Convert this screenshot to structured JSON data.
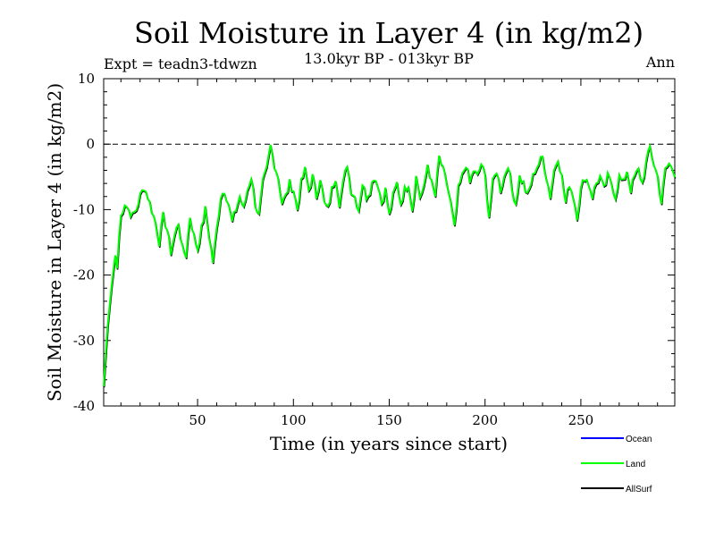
{
  "chart_data": {
    "type": "line",
    "title": "Soil Moisture in Layer 4 (in kg/m2)",
    "subtitle": "13.0kyr BP - 013kyr BP",
    "experiment_label": "Expt = teadn3-tdwzn",
    "period_label": "Ann",
    "xlabel": "Time (in years since start)",
    "ylabel": "Soil Moisture in Layer 4 (in kg/m2)",
    "xlim": [
      1,
      299
    ],
    "ylim": [
      -40,
      10
    ],
    "x_ticks": [
      50,
      100,
      150,
      200,
      250
    ],
    "y_ticks": [
      10,
      0,
      -10,
      -20,
      -30,
      -40
    ],
    "reference_line": 0,
    "keyframes": [
      [
        1,
        -37
      ],
      [
        3,
        -28
      ],
      [
        5,
        -22
      ],
      [
        7,
        -17
      ],
      [
        8,
        -19
      ],
      [
        9,
        -14
      ],
      [
        10,
        -11
      ],
      [
        12,
        -9
      ],
      [
        14,
        -10
      ],
      [
        16,
        -11
      ],
      [
        18,
        -10
      ],
      [
        20,
        -8
      ],
      [
        22,
        -6.5
      ],
      [
        24,
        -8
      ],
      [
        26,
        -10
      ],
      [
        28,
        -12
      ],
      [
        30,
        -15
      ],
      [
        32,
        -11
      ],
      [
        34,
        -13
      ],
      [
        36,
        -16.5
      ],
      [
        38,
        -14
      ],
      [
        40,
        -12
      ],
      [
        42,
        -16
      ],
      [
        44,
        -17
      ],
      [
        46,
        -11
      ],
      [
        48,
        -14
      ],
      [
        50,
        -16
      ],
      [
        52,
        -13
      ],
      [
        54,
        -10
      ],
      [
        56,
        -14
      ],
      [
        58,
        -18
      ],
      [
        60,
        -13
      ],
      [
        62,
        -8
      ],
      [
        64,
        -7
      ],
      [
        66,
        -9
      ],
      [
        68,
        -12
      ],
      [
        70,
        -10
      ],
      [
        72,
        -8
      ],
      [
        74,
        -10
      ],
      [
        76,
        -7
      ],
      [
        78,
        -5
      ],
      [
        80,
        -9
      ],
      [
        82,
        -11
      ],
      [
        84,
        -6
      ],
      [
        86,
        -4
      ],
      [
        88,
        -0.3
      ],
      [
        90,
        -3
      ],
      [
        92,
        -5
      ],
      [
        94,
        -9
      ],
      [
        96,
        -8
      ],
      [
        98,
        -6
      ],
      [
        100,
        -7
      ],
      [
        102,
        -10
      ],
      [
        104,
        -6
      ],
      [
        106,
        -4
      ],
      [
        108,
        -7
      ],
      [
        110,
        -5
      ],
      [
        112,
        -8
      ],
      [
        114,
        -5
      ],
      [
        116,
        -9
      ],
      [
        118,
        -10
      ],
      [
        120,
        -7
      ],
      [
        122,
        -5
      ],
      [
        124,
        -9
      ],
      [
        126,
        -6
      ],
      [
        128,
        -3
      ],
      [
        130,
        -7
      ],
      [
        132,
        -8
      ],
      [
        134,
        -10
      ],
      [
        136,
        -6
      ],
      [
        138,
        -8
      ],
      [
        140,
        -7
      ],
      [
        142,
        -5
      ],
      [
        144,
        -6
      ],
      [
        146,
        -9
      ],
      [
        148,
        -7
      ],
      [
        150,
        -11
      ],
      [
        152,
        -8
      ],
      [
        154,
        -6
      ],
      [
        156,
        -9
      ],
      [
        158,
        -7
      ],
      [
        160,
        -6
      ],
      [
        162,
        -10
      ],
      [
        164,
        -5
      ],
      [
        166,
        -8
      ],
      [
        168,
        -7
      ],
      [
        170,
        -3
      ],
      [
        172,
        -6
      ],
      [
        174,
        -8
      ],
      [
        176,
        -2
      ],
      [
        178,
        -4
      ],
      [
        180,
        -6
      ],
      [
        182,
        -9
      ],
      [
        184,
        -13
      ],
      [
        186,
        -7
      ],
      [
        188,
        -5
      ],
      [
        190,
        -3
      ],
      [
        192,
        -6
      ],
      [
        194,
        -4
      ],
      [
        196,
        -5
      ],
      [
        198,
        -3
      ],
      [
        200,
        -5
      ],
      [
        202,
        -11
      ],
      [
        204,
        -6
      ],
      [
        206,
        -4
      ],
      [
        208,
        -7
      ],
      [
        210,
        -5
      ],
      [
        212,
        -3
      ],
      [
        214,
        -7
      ],
      [
        216,
        -9
      ],
      [
        218,
        -5
      ],
      [
        220,
        -6
      ],
      [
        222,
        -8
      ],
      [
        224,
        -6
      ],
      [
        226,
        -4
      ],
      [
        228,
        -3
      ],
      [
        230,
        -2
      ],
      [
        232,
        -5
      ],
      [
        234,
        -8
      ],
      [
        236,
        -4
      ],
      [
        238,
        -2
      ],
      [
        240,
        -5
      ],
      [
        242,
        -9
      ],
      [
        244,
        -6
      ],
      [
        246,
        -8
      ],
      [
        248,
        -11
      ],
      [
        250,
        -7
      ],
      [
        252,
        -5
      ],
      [
        254,
        -6
      ],
      [
        256,
        -8
      ],
      [
        258,
        -6
      ],
      [
        260,
        -5
      ],
      [
        262,
        -7
      ],
      [
        264,
        -5
      ],
      [
        266,
        -6
      ],
      [
        268,
        -8
      ],
      [
        270,
        -5
      ],
      [
        272,
        -6
      ],
      [
        274,
        -4
      ],
      [
        276,
        -7
      ],
      [
        278,
        -5
      ],
      [
        280,
        -4
      ],
      [
        282,
        -6
      ],
      [
        284,
        -3
      ],
      [
        286,
        -0.5
      ],
      [
        288,
        -3
      ],
      [
        290,
        -5
      ],
      [
        292,
        -9
      ],
      [
        294,
        -4
      ],
      [
        296,
        -3
      ],
      [
        299,
        -4.5
      ]
    ],
    "series": [
      {
        "name": "Ocean",
        "color": "#0000ff",
        "values": []
      },
      {
        "name": "Land",
        "color": "#00ff00"
      },
      {
        "name": "AllSurf",
        "color": "#000000"
      }
    ]
  }
}
